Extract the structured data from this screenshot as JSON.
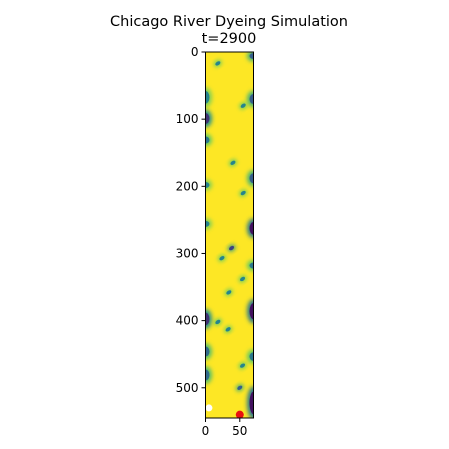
{
  "chart_data": {
    "type": "heatmap",
    "title": "Chicago River Dyeing Simulation",
    "subtitle": "t=2900",
    "xlabel": "",
    "ylabel": "",
    "x_ticks": [
      0,
      50
    ],
    "y_ticks": [
      0,
      100,
      200,
      300,
      400,
      500
    ],
    "xlim": [
      0,
      70
    ],
    "ylim": [
      545,
      0
    ],
    "grid": false,
    "colormap": "viridis",
    "colors": {
      "background_field": "#fde725",
      "low_value": "#440154",
      "mid_value": "#21918c",
      "high_value": "#fde725",
      "marker_red": "#e8110f",
      "marker_white": "#ffffff"
    },
    "field_value_background": 1.0,
    "features": [
      {
        "kind": "edge-band",
        "side": "left",
        "y_range": [
          55,
          80
        ],
        "min_value": 0.45
      },
      {
        "kind": "edge-band",
        "side": "left",
        "y_range": [
          88,
          110
        ],
        "min_value": 0.15
      },
      {
        "kind": "edge-band",
        "side": "left",
        "y_range": [
          124,
          138
        ],
        "min_value": 0.4
      },
      {
        "kind": "edge-band",
        "side": "left",
        "y_range": [
          192,
          204
        ],
        "min_value": 0.45
      },
      {
        "kind": "edge-band",
        "side": "left",
        "y_range": [
          250,
          262
        ],
        "min_value": 0.45
      },
      {
        "kind": "edge-band",
        "side": "left",
        "y_range": [
          385,
          410
        ],
        "min_value": 0.15
      },
      {
        "kind": "edge-band",
        "side": "left",
        "y_range": [
          436,
          456
        ],
        "min_value": 0.35
      },
      {
        "kind": "edge-band",
        "side": "left",
        "y_range": [
          470,
          492
        ],
        "min_value": 0.35
      },
      {
        "kind": "edge-band",
        "side": "right",
        "y_range": [
          0,
          12
        ],
        "min_value": 0.3
      },
      {
        "kind": "edge-band",
        "side": "right",
        "y_range": [
          60,
          80
        ],
        "min_value": 0.3
      },
      {
        "kind": "edge-band",
        "side": "right",
        "y_range": [
          178,
          198
        ],
        "min_value": 0.3
      },
      {
        "kind": "edge-band",
        "side": "right",
        "y_range": [
          250,
          275
        ],
        "min_value": 0.05
      },
      {
        "kind": "edge-band",
        "side": "right",
        "y_range": [
          312,
          324
        ],
        "min_value": 0.4
      },
      {
        "kind": "edge-band",
        "side": "right",
        "y_range": [
          370,
          402
        ],
        "min_value": 0.05
      },
      {
        "kind": "edge-band",
        "side": "right",
        "y_range": [
          445,
          462
        ],
        "min_value": 0.4
      },
      {
        "kind": "edge-band",
        "side": "right",
        "y_range": [
          500,
          545
        ],
        "min_value": 0.05
      },
      {
        "kind": "blob",
        "x": 18,
        "y": 17,
        "min_value": 0.45
      },
      {
        "kind": "blob",
        "x": 55,
        "y": 80,
        "min_value": 0.45
      },
      {
        "kind": "blob",
        "x": 40,
        "y": 165,
        "min_value": 0.45
      },
      {
        "kind": "blob",
        "x": 55,
        "y": 210,
        "min_value": 0.45
      },
      {
        "kind": "blob",
        "x": 38,
        "y": 292,
        "min_value": 0.2
      },
      {
        "kind": "blob",
        "x": 24,
        "y": 307,
        "min_value": 0.45
      },
      {
        "kind": "blob",
        "x": 54,
        "y": 338,
        "min_value": 0.45
      },
      {
        "kind": "blob",
        "x": 34,
        "y": 358,
        "min_value": 0.45
      },
      {
        "kind": "blob",
        "x": 18,
        "y": 402,
        "min_value": 0.45
      },
      {
        "kind": "blob",
        "x": 33,
        "y": 413,
        "min_value": 0.45
      },
      {
        "kind": "blob",
        "x": 54,
        "y": 467,
        "min_value": 0.45
      },
      {
        "kind": "blob",
        "x": 50,
        "y": 500,
        "min_value": 0.3
      },
      {
        "kind": "source-marker",
        "x": 50,
        "y": 540,
        "color": "red"
      },
      {
        "kind": "source-marker",
        "x": 5,
        "y": 530,
        "color": "white"
      }
    ]
  }
}
